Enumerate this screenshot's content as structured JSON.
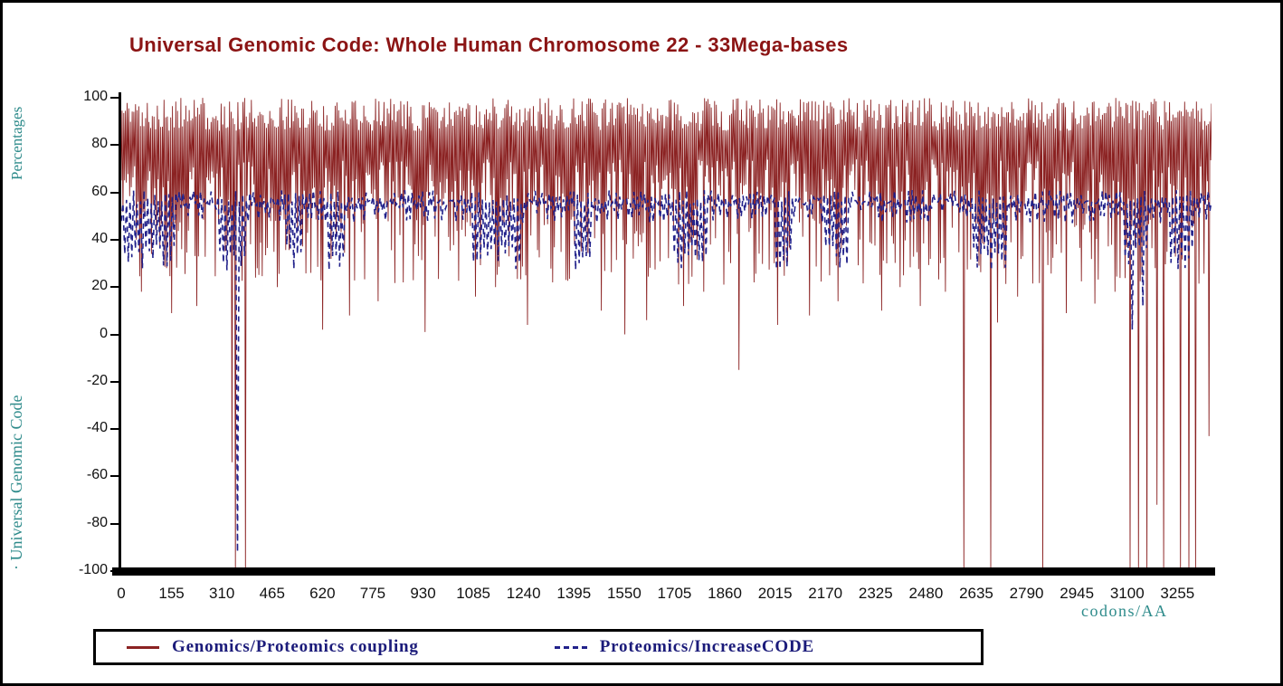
{
  "colors": {
    "title": "#8b1414",
    "axis": "#000000",
    "tick_text": "#111111",
    "teal_label": "#2e8b8b",
    "legend_text": "#1b1b7a",
    "background": "#ffffff",
    "series_red": "#8b2222",
    "series_blue": "#22228b"
  },
  "chart_data": {
    "type": "line",
    "title": "Universal Genomic Code: Whole Human Chromosome 22 - 33Mega-bases",
    "xlabel": "codons/AA",
    "ylabel_top": "Percentages",
    "ylabel_bottom": "· Universal Genomic Code",
    "xlim": [
      0,
      3360
    ],
    "ylim": [
      -100,
      100
    ],
    "x_ticks": [
      0,
      155,
      310,
      465,
      620,
      775,
      930,
      1085,
      1240,
      1395,
      1550,
      1705,
      1860,
      2015,
      2170,
      2325,
      2480,
      2635,
      2790,
      2945,
      3100,
      3255
    ],
    "y_ticks": [
      100,
      80,
      60,
      40,
      20,
      0,
      -20,
      -40,
      -60,
      -80,
      -100
    ],
    "grid": false,
    "legend": {
      "position": "bottom",
      "items": [
        {
          "label": "Genomics/Proteomics coupling",
          "style": "solid",
          "color": "#8b2222"
        },
        {
          "label": "Proteomics/IncreaseCODE",
          "style": "dashed",
          "color": "#22228b"
        }
      ]
    },
    "series": [
      {
        "name": "Genomics/Proteomics coupling",
        "color": "#8b2222",
        "style": "solid",
        "stroke_width": 0.9,
        "points": 1300,
        "seed": 11,
        "high_range": [
          86,
          100
        ],
        "low_bands": [
          [
            55,
            74,
            0.52
          ],
          [
            33,
            55,
            0.33
          ],
          [
            21,
            33,
            0.15
          ]
        ],
        "shallow_dips": [
          [
            60,
            18
          ],
          [
            155,
            9
          ],
          [
            232,
            12
          ],
          [
            410,
            24
          ],
          [
            480,
            20
          ],
          [
            620,
            2
          ],
          [
            700,
            8
          ],
          [
            790,
            14
          ],
          [
            870,
            22
          ],
          [
            935,
            1
          ],
          [
            1090,
            16
          ],
          [
            1150,
            20
          ],
          [
            1250,
            4
          ],
          [
            1330,
            22
          ],
          [
            1480,
            10
          ],
          [
            1552,
            0
          ],
          [
            1620,
            6
          ],
          [
            1730,
            12
          ],
          [
            1795,
            18
          ],
          [
            1950,
            22
          ],
          [
            2020,
            4
          ],
          [
            2120,
            8
          ],
          [
            2210,
            14
          ],
          [
            2340,
            10
          ],
          [
            2400,
            20
          ],
          [
            2462,
            12
          ],
          [
            2540,
            18
          ],
          [
            2700,
            5
          ],
          [
            2760,
            16
          ],
          [
            2912,
            9
          ],
          [
            3000,
            13
          ],
          [
            3060,
            18
          ]
        ],
        "deep_spikes": [
          [
            340,
            -54
          ],
          [
            352,
            -100
          ],
          [
            383,
            -100
          ],
          [
            1900,
            -15
          ],
          [
            2594,
            -100
          ],
          [
            2680,
            -100
          ],
          [
            2840,
            -100
          ],
          [
            3108,
            -100
          ],
          [
            3132,
            -100
          ],
          [
            3160,
            -100
          ],
          [
            3188,
            -72
          ],
          [
            3210,
            -100
          ],
          [
            3262,
            -100
          ],
          [
            3288,
            -100
          ],
          [
            3312,
            -100
          ],
          [
            3352,
            -43
          ]
        ]
      },
      {
        "name": "Proteomics/IncreaseCODE",
        "color": "#22228b",
        "style": "dashed",
        "stroke_width": 1.6,
        "dash": "6 5",
        "points": 620,
        "seed": 23,
        "high_range": [
          55,
          61
        ],
        "low_range": [
          47,
          57
        ],
        "dip_low_range": [
          27,
          38
        ],
        "dip_regions": [
          [
            5,
            170
          ],
          [
            295,
            385
          ],
          [
            500,
            560
          ],
          [
            640,
            685
          ],
          [
            1080,
            1235
          ],
          [
            1390,
            1445
          ],
          [
            1700,
            1810
          ],
          [
            2010,
            2070
          ],
          [
            2165,
            2240
          ],
          [
            2620,
            2725
          ],
          [
            3085,
            3165
          ],
          [
            3235,
            3310
          ]
        ],
        "deep_spikes": [
          [
            352,
            -92
          ],
          [
            3118,
            2
          ],
          [
            3150,
            12
          ]
        ]
      }
    ]
  }
}
